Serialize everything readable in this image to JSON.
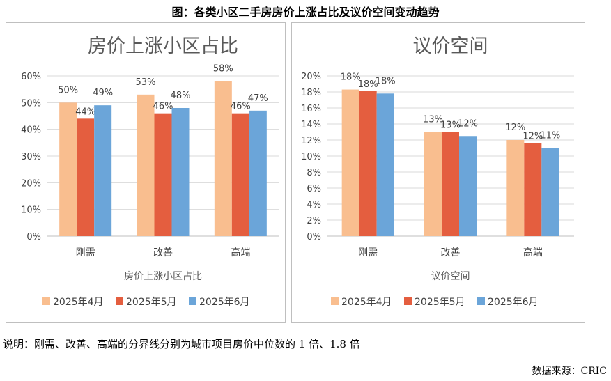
{
  "figure_title": "图：各类小区二手房房价上涨占比及议价空间变动趋势",
  "colors": {
    "s1": "#F9BE8F",
    "s2": "#E45E3F",
    "s3": "#6BA5D9"
  },
  "chart_data": [
    {
      "type": "bar",
      "title": "房价上涨小区占比",
      "xlabel": "房价上涨小区占比",
      "ylabel": "",
      "categories": [
        "刚需",
        "改善",
        "高端"
      ],
      "ylim": [
        0,
        60
      ],
      "yticks": [
        0,
        10,
        20,
        30,
        40,
        50,
        60
      ],
      "tick_suffix": "%",
      "series": [
        {
          "name": "2025年4月",
          "values": [
            50,
            53,
            58
          ],
          "labels": [
            "50%",
            "53%",
            "58%"
          ]
        },
        {
          "name": "2025年5月",
          "values": [
            44,
            46,
            46
          ],
          "labels": [
            "44%",
            "46%",
            "46%"
          ]
        },
        {
          "name": "2025年6月",
          "values": [
            49,
            48,
            47
          ],
          "labels": [
            "49%",
            "48%",
            "47%"
          ]
        }
      ],
      "legend": "bottom",
      "grid": true
    },
    {
      "type": "bar",
      "title": "议价空间",
      "xlabel": "议价空间",
      "ylabel": "",
      "categories": [
        "刚需",
        "改善",
        "高端"
      ],
      "ylim": [
        0,
        20
      ],
      "yticks": [
        0,
        2,
        4,
        6,
        8,
        10,
        12,
        14,
        16,
        18,
        20
      ],
      "tick_suffix": "%",
      "series": [
        {
          "name": "2025年4月",
          "values": [
            18.3,
            13.0,
            12.0
          ],
          "labels": [
            "18%",
            "13%",
            "12%"
          ]
        },
        {
          "name": "2025年5月",
          "values": [
            18.1,
            13.0,
            11.6
          ],
          "labels": [
            "18%",
            "13%",
            "12%"
          ]
        },
        {
          "name": "2025年6月",
          "values": [
            17.8,
            12.5,
            11.0
          ],
          "labels": [
            "18%",
            "12%",
            "11%"
          ]
        }
      ],
      "legend": "bottom",
      "grid": true
    }
  ],
  "note": "说明：刚需、改善、高端的分界线分别为城市项目房价中位数的 1 倍、1.8 倍",
  "source": "数据来源：CRIC"
}
